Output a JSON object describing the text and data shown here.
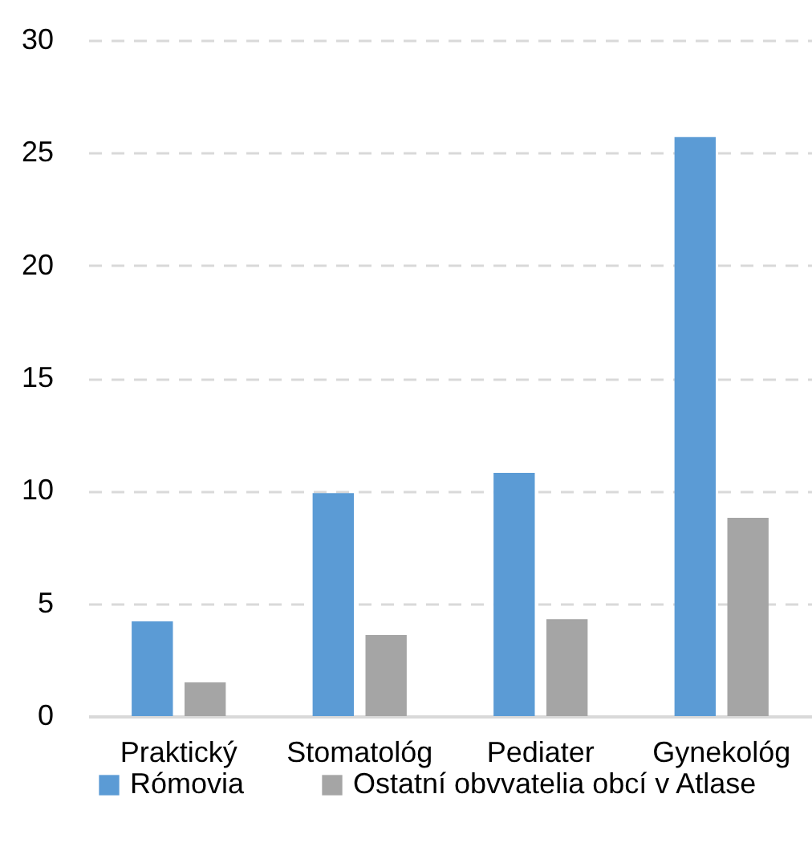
{
  "chart_data": {
    "type": "bar",
    "categories": [
      "Praktický",
      "Stomatológ",
      "Pediater",
      "Gynekológ"
    ],
    "series": [
      {
        "name": "Rómovia",
        "color": "#5b9bd5",
        "values": [
          4.2,
          9.9,
          10.8,
          25.7
        ]
      },
      {
        "name": "Ostatní obvvatelia obcí v Atlase",
        "color": "#a5a5a5",
        "values": [
          1.5,
          3.6,
          4.3,
          8.8
        ]
      }
    ],
    "ylim": [
      0,
      30
    ],
    "yticks": [
      0,
      5,
      10,
      15,
      20,
      25,
      30
    ],
    "grid": "y",
    "legend": "bottom left"
  }
}
